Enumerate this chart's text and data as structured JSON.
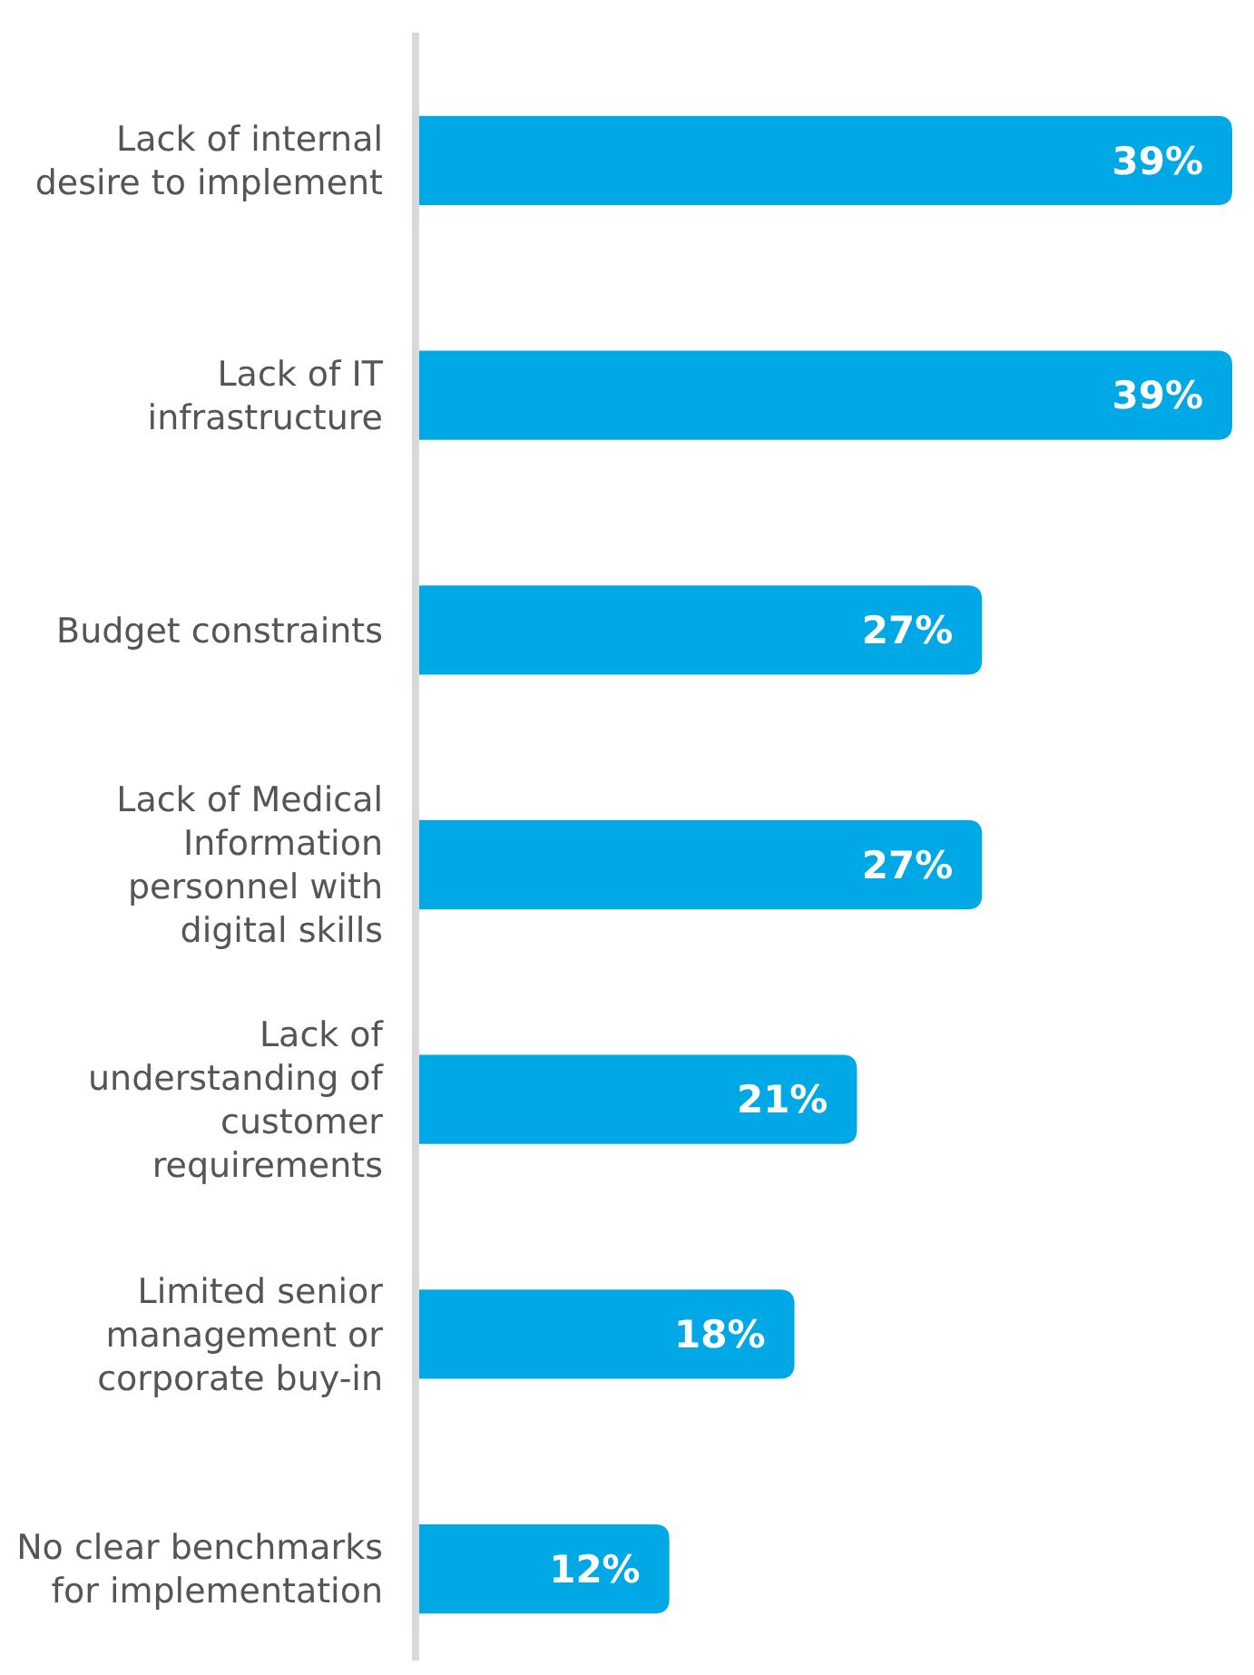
{
  "chart_data": {
    "type": "bar",
    "orientation": "horizontal",
    "categories": [
      "Lack of internal desire to implement",
      "Lack of IT infrastructure",
      "Budget constraints",
      "Lack of Medical Information personnel with digital skills",
      "Lack of understanding of customer requirements",
      "Limited senior management or corporate buy-in",
      "No clear benchmarks for implementation"
    ],
    "values": [
      39,
      39,
      27,
      27,
      21,
      18,
      12
    ],
    "value_labels": [
      "39%",
      "39%",
      "27%",
      "27%",
      "21%",
      "18%",
      "12%"
    ],
    "color": "#00a9e6"
  }
}
